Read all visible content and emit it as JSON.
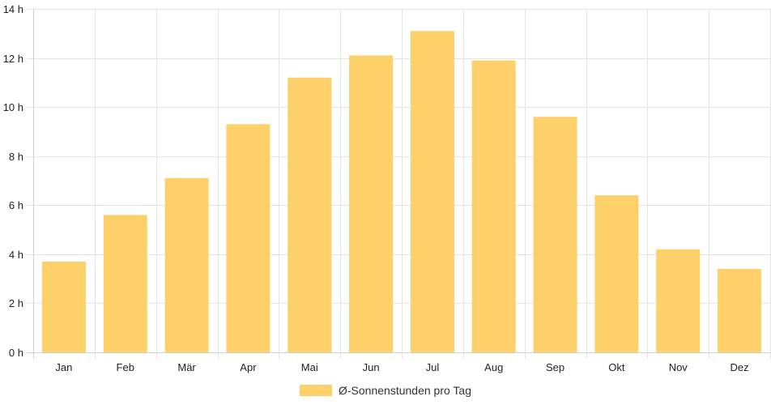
{
  "chart_data": {
    "type": "bar",
    "categories": [
      "Jan",
      "Feb",
      "Mär",
      "Apr",
      "Mai",
      "Jun",
      "Jul",
      "Aug",
      "Sep",
      "Okt",
      "Nov",
      "Dez"
    ],
    "series": [
      {
        "name": "Ø-Sonnenstunden pro Tag",
        "values": [
          3.7,
          5.6,
          7.1,
          9.3,
          11.2,
          12.1,
          13.1,
          11.9,
          9.6,
          6.4,
          4.2,
          3.4
        ]
      }
    ],
    "ylim": [
      0,
      14
    ],
    "yticks": [
      0,
      2,
      4,
      6,
      8,
      10,
      12,
      14
    ],
    "ytick_suffix": " h",
    "grid": true,
    "legend_position": "bottom-center",
    "colors": {
      "bar": "#fdd069",
      "grid": "#e4e4e4",
      "axis": "#cfcfcf"
    }
  }
}
